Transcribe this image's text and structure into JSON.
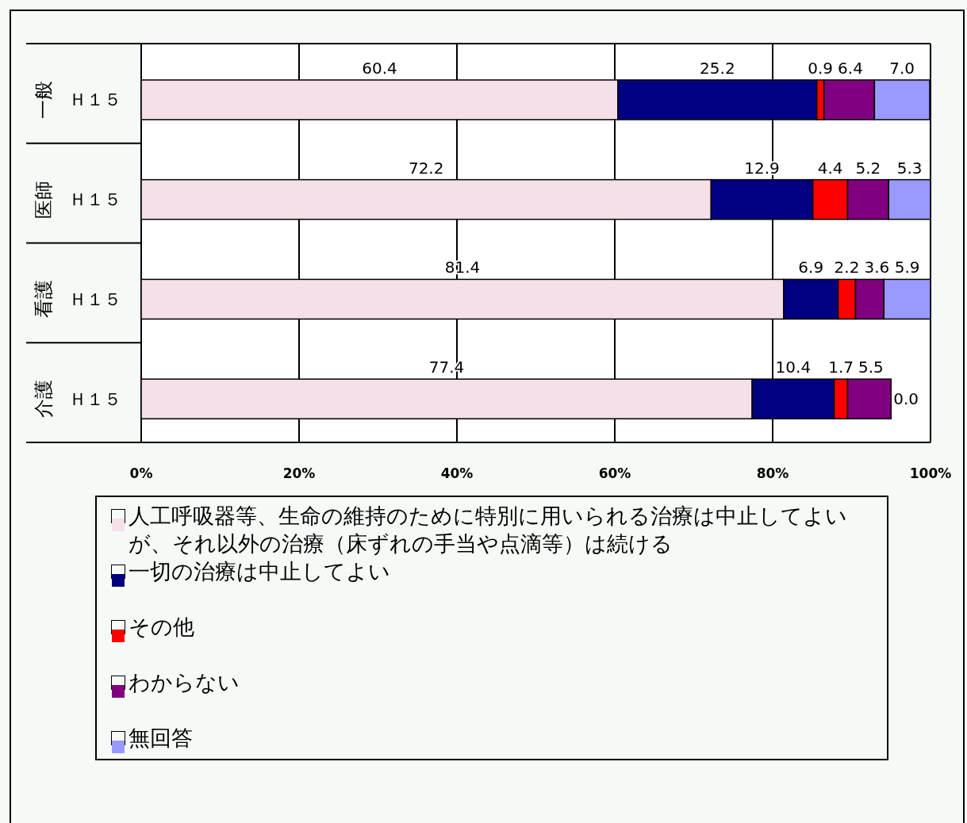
{
  "chart_data": {
    "type": "bar",
    "orientation": "horizontal",
    "stacked": true,
    "grid": "x",
    "legend": "bottom",
    "categories": [
      "一般 Ｈ１５",
      "医師 Ｈ１５",
      "看護 Ｈ１５",
      "介護 Ｈ１５"
    ],
    "xlim": [
      0,
      100
    ],
    "xticks": [
      {
        "value": 0,
        "label": "0%"
      },
      {
        "value": 20,
        "label": "20%"
      },
      {
        "value": 40,
        "label": "40%"
      },
      {
        "value": 60,
        "label": "60%"
      },
      {
        "value": 80,
        "label": "80%"
      },
      {
        "value": 100,
        "label": "100%"
      }
    ],
    "series": [
      {
        "name": "人工呼吸器等、生命の維持のために特別に用いられる治療は中止してよいが、それ以外の治療（床ずれの手当や点滴等）は続ける",
        "color": "#f5dfe8",
        "values": [
          60.4,
          72.2,
          81.4,
          77.4
        ],
        "value_labels": [
          "60.4",
          "72.2",
          "81.4",
          "77.4"
        ]
      },
      {
        "name": "一切の治療は中止してよい",
        "color": "#000080",
        "values": [
          25.2,
          12.9,
          6.9,
          10.4
        ],
        "value_labels": [
          "25.2",
          "12.9",
          "6.9",
          "10.4"
        ]
      },
      {
        "name": "その他",
        "color": "#ff0000",
        "values": [
          0.9,
          4.4,
          2.2,
          1.7
        ],
        "value_labels": [
          "0.9",
          "4.4",
          "2.2",
          "1.7"
        ]
      },
      {
        "name": "わからない",
        "color": "#800080",
        "values": [
          6.4,
          5.2,
          3.6,
          5.5
        ],
        "value_labels": [
          "6.4",
          "5.2",
          "3.6",
          "5.5"
        ]
      },
      {
        "name": "無回答",
        "color": "#9999ff",
        "values": [
          7.0,
          5.3,
          5.9,
          0.0
        ],
        "value_labels": [
          "7.0",
          "5.3",
          "5.9",
          "0.0"
        ]
      }
    ]
  }
}
